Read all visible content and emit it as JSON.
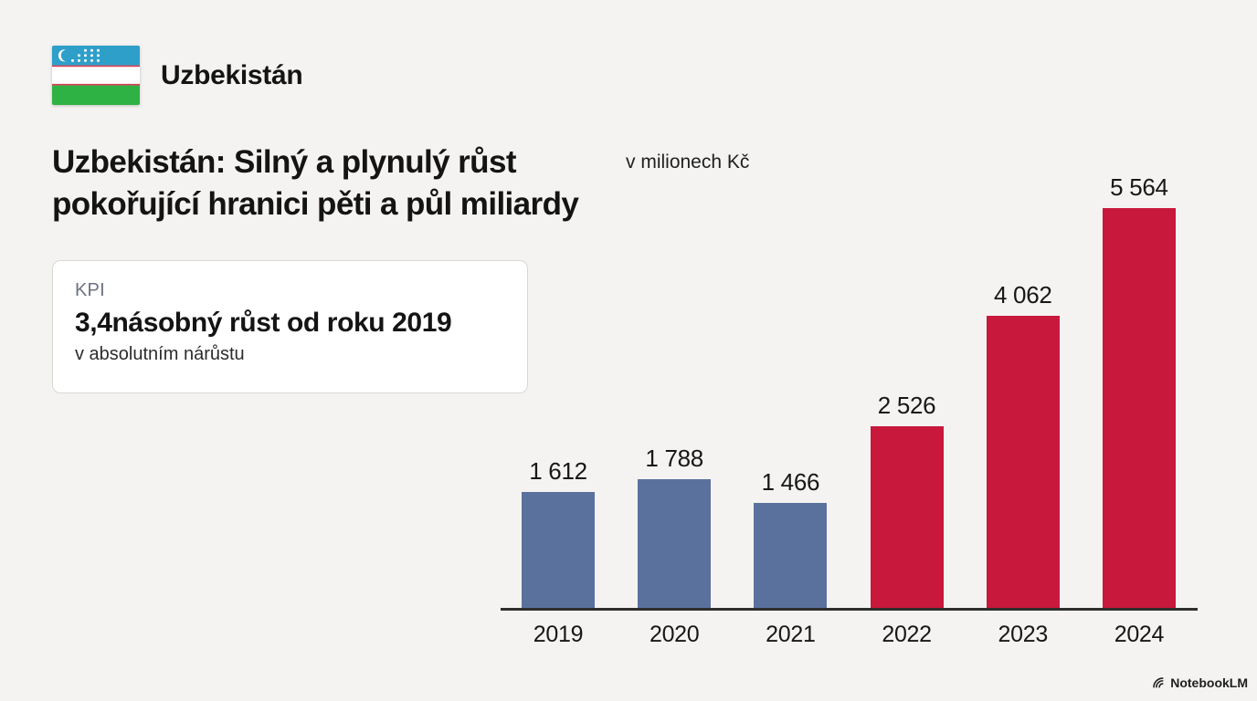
{
  "page": {
    "background_color": "#f4f3f1"
  },
  "header": {
    "country_label": "Uzbekistán",
    "flag_name": "uzbekistan-flag",
    "flag_colors": {
      "blue": "#2e9fc9",
      "white": "#ffffff",
      "green": "#2fb244",
      "stripe_red": "#d53c50"
    }
  },
  "title": {
    "line1": "Uzbekistán: Silný a plynulý růst",
    "line2": "pokořující hranici pěti a půl miliardy",
    "unit_note": "v milionech Kč"
  },
  "kpi_card": {
    "label": "KPI",
    "headline": "3,4násobný růst od roku 2019",
    "subtext": "v absolutním nárůstu"
  },
  "chart_data": {
    "type": "bar",
    "categories": [
      "2019",
      "2020",
      "2021",
      "2022",
      "2023",
      "2024"
    ],
    "values": [
      1612,
      1788,
      1466,
      2526,
      4062,
      5564
    ],
    "value_labels": [
      "1 612",
      "1 788",
      "1 466",
      "2 526",
      "4 062",
      "5 564"
    ],
    "bar_colors": [
      "#5b719d",
      "#5b719d",
      "#5b719d",
      "#c8183c",
      "#c8183c",
      "#c8183c"
    ],
    "title": "Uzbekistán: Silný a plynulý růst pokořující hranici pěti a půl miliardy",
    "xlabel": "",
    "ylabel": "v milionech Kč",
    "ylim": [
      0,
      5564
    ],
    "grid": false,
    "legend": "none",
    "axis_line_color": "#2e2e2e",
    "colors_meaning": {
      "#5b719d": "years 2019-2021",
      "#c8183c": "years 2022-2024"
    }
  },
  "footer": {
    "watermark": "NotebookLM"
  }
}
